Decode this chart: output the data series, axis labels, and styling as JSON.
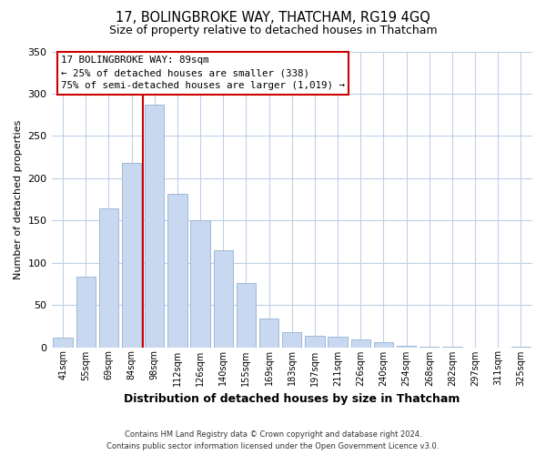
{
  "title": "17, BOLINGBROKE WAY, THATCHAM, RG19 4GQ",
  "subtitle": "Size of property relative to detached houses in Thatcham",
  "xlabel": "Distribution of detached houses by size in Thatcham",
  "ylabel": "Number of detached properties",
  "bar_labels": [
    "41sqm",
    "55sqm",
    "69sqm",
    "84sqm",
    "98sqm",
    "112sqm",
    "126sqm",
    "140sqm",
    "155sqm",
    "169sqm",
    "183sqm",
    "197sqm",
    "211sqm",
    "226sqm",
    "240sqm",
    "254sqm",
    "268sqm",
    "282sqm",
    "297sqm",
    "311sqm",
    "325sqm"
  ],
  "bar_values": [
    11,
    83,
    164,
    218,
    287,
    182,
    150,
    115,
    76,
    34,
    18,
    14,
    12,
    9,
    6,
    2,
    1,
    1,
    0,
    0,
    1
  ],
  "bar_color": "#c8d8f0",
  "bar_edge_color": "#a0b8d8",
  "vline_color": "#cc0000",
  "vline_pos": 3.5,
  "ylim": [
    0,
    350
  ],
  "yticks": [
    0,
    50,
    100,
    150,
    200,
    250,
    300,
    350
  ],
  "annotation_title": "17 BOLINGBROKE WAY: 89sqm",
  "annotation_line1": "← 25% of detached houses are smaller (338)",
  "annotation_line2": "75% of semi-detached houses are larger (1,019) →",
  "footer_line1": "Contains HM Land Registry data © Crown copyright and database right 2024.",
  "footer_line2": "Contains public sector information licensed under the Open Government Licence v3.0.",
  "background_color": "#ffffff",
  "grid_color": "#c0d0e8"
}
